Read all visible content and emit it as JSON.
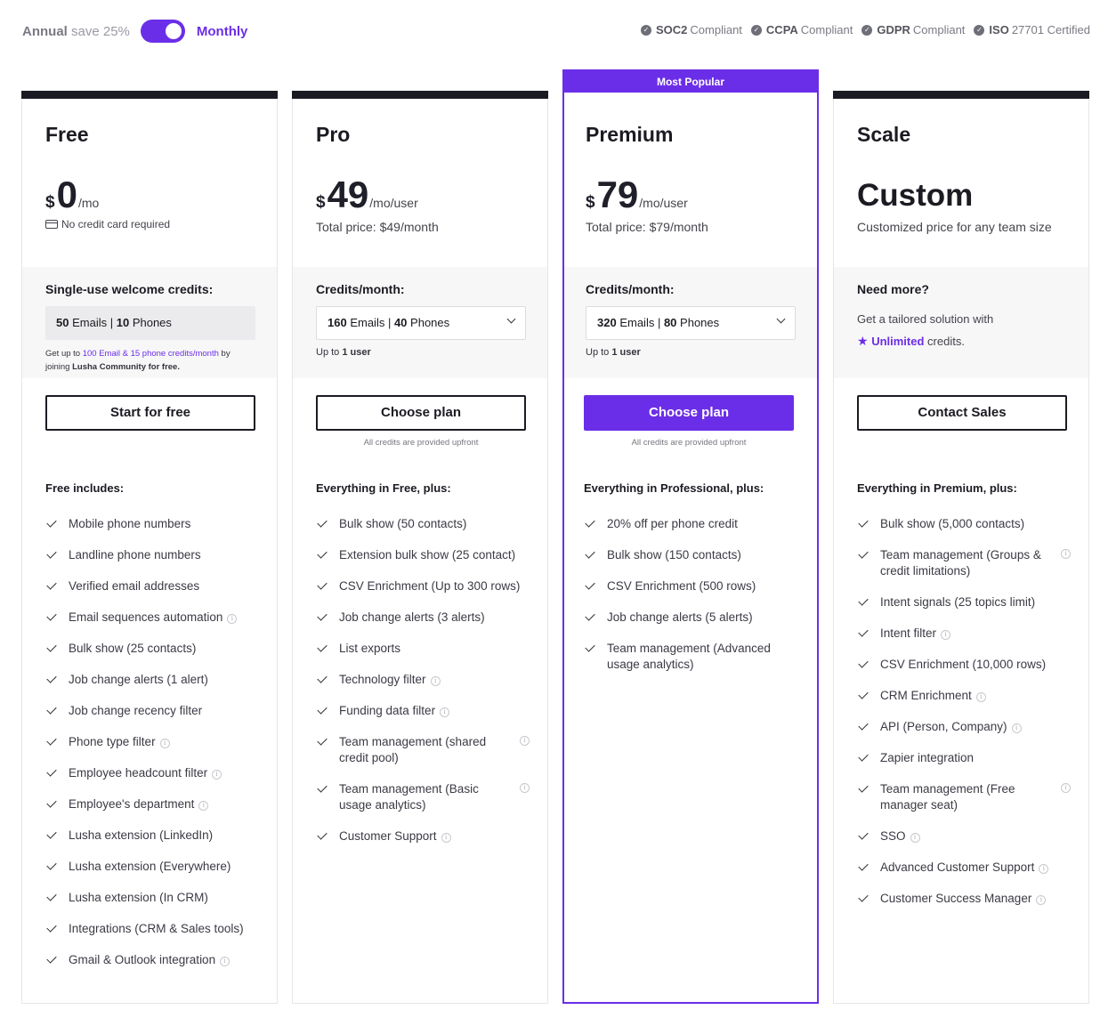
{
  "billing": {
    "annual_label": "Annual",
    "annual_save": "save 25%",
    "monthly_label": "Monthly"
  },
  "compliance": [
    {
      "name": "SOC2",
      "label": "Compliant"
    },
    {
      "name": "CCPA",
      "label": "Compliant"
    },
    {
      "name": "GDPR",
      "label": "Compliant"
    },
    {
      "name": "ISO",
      "label": "27701 Certified"
    }
  ],
  "plans": [
    {
      "name": "Free",
      "currency": "$",
      "amount": "0",
      "period": "/mo",
      "subline": "No credit card required",
      "credits_label": "Single-use welcome credits:",
      "credits_emails": "50",
      "credits_emails_label": "Emails",
      "credits_phones": "10",
      "credits_phones_label": "Phones",
      "note_prefix": "Get up to",
      "note_highlight": "100 Email & 15 phone credits/month",
      "note_mid": "by joining",
      "note_bold": "Lusha Community for free.",
      "button": "Start for free",
      "features_title": "Free includes:",
      "features": [
        {
          "text": "Mobile phone numbers",
          "info": false
        },
        {
          "text": "Landline phone numbers",
          "info": false
        },
        {
          "text": "Verified email addresses",
          "info": false
        },
        {
          "text": "Email sequences automation",
          "info": true
        },
        {
          "text": "Bulk show (25 contacts)",
          "info": false
        },
        {
          "text": "Job change alerts (1 alert)",
          "info": false
        },
        {
          "text": "Job change recency filter",
          "info": false
        },
        {
          "text": "Phone type filter",
          "info": true
        },
        {
          "text": "Employee headcount filter",
          "info": true
        },
        {
          "text": "Employee's department",
          "info": true
        },
        {
          "text": "Lusha extension (LinkedIn)",
          "info": false
        },
        {
          "text": "Lusha extension (Everywhere)",
          "info": false
        },
        {
          "text": "Lusha extension (In CRM)",
          "info": false
        },
        {
          "text": "Integrations (CRM & Sales tools)",
          "info": false
        },
        {
          "text": "Gmail & Outlook integration",
          "info": true
        }
      ]
    },
    {
      "name": "Pro",
      "currency": "$",
      "amount": "49",
      "period": "/mo/user",
      "subline": "Total price: $49/month",
      "credits_label": "Credits/month:",
      "credits_emails": "160",
      "credits_emails_label": "Emails",
      "credits_phones": "40",
      "credits_phones_label": "Phones",
      "note_prefix": "Up to",
      "note_bold": "1 user",
      "button": "Choose plan",
      "upfront": "All credits are provided upfront",
      "features_title": "Everything in Free, plus:",
      "features": [
        {
          "text": "Bulk show (50 contacts)",
          "info": false
        },
        {
          "text": "Extension bulk show (25 contact)",
          "info": false
        },
        {
          "text": "CSV Enrichment (Up to 300 rows)",
          "info": false
        },
        {
          "text": "Job change alerts (3 alerts)",
          "info": false
        },
        {
          "text": "List exports",
          "info": false
        },
        {
          "text": "Technology filter",
          "info": true
        },
        {
          "text": "Funding data filter",
          "info": true
        },
        {
          "text": "Team management (shared credit pool)",
          "info": true,
          "two": true
        },
        {
          "text": "Team management (Basic usage analytics)",
          "info": true,
          "two": true
        },
        {
          "text": "Customer Support",
          "info": true
        }
      ]
    },
    {
      "name": "Premium",
      "ribbon": "Most Popular",
      "currency": "$",
      "amount": "79",
      "period": "/mo/user",
      "subline": "Total price: $79/month",
      "credits_label": "Credits/month:",
      "credits_emails": "320",
      "credits_emails_label": "Emails",
      "credits_phones": "80",
      "credits_phones_label": "Phones",
      "note_prefix": "Up to",
      "note_bold": "1 user",
      "button": "Choose plan",
      "upfront": "All credits are provided upfront",
      "features_title": "Everything in Professional, plus:",
      "features": [
        {
          "text": "20% off per phone credit",
          "info": false
        },
        {
          "text": "Bulk show (150 contacts)",
          "info": false
        },
        {
          "text": "CSV Enrichment (500 rows)",
          "info": false
        },
        {
          "text": "Job change alerts (5 alerts)",
          "info": false
        },
        {
          "text": "Team management (Advanced usage analytics)",
          "info": false
        }
      ]
    },
    {
      "name": "Scale",
      "custom": "Custom",
      "subline": "Customized price for any team size",
      "credits_label": "Need more?",
      "scale_text": "Get a tailored solution with",
      "scale_bold": "Unlimited",
      "scale_end": "credits.",
      "button": "Contact Sales",
      "features_title": "Everything in Premium, plus:",
      "features": [
        {
          "text": "Bulk show (5,000 contacts)",
          "info": false
        },
        {
          "text": "Team management (Groups & credit limitations)",
          "info": true,
          "two": true
        },
        {
          "text": "Intent signals (25 topics limit)",
          "info": false
        },
        {
          "text": "Intent filter",
          "info": true
        },
        {
          "text": "CSV Enrichment (10,000 rows)",
          "info": false
        },
        {
          "text": "CRM Enrichment",
          "info": true
        },
        {
          "text": "API (Person, Company)",
          "info": true
        },
        {
          "text": "Zapier integration",
          "info": false
        },
        {
          "text": "Team management (Free manager seat)",
          "info": true,
          "two": true
        },
        {
          "text": "SSO",
          "info": true
        },
        {
          "text": "Advanced Customer Support",
          "info": true
        },
        {
          "text": "Customer Success Manager",
          "info": true
        }
      ]
    }
  ]
}
